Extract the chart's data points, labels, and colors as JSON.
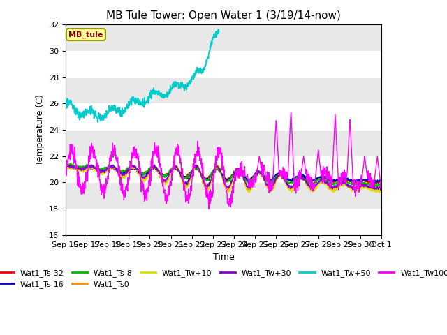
{
  "title": "MB Tule Tower: Open Water 1 (3/19/14-now)",
  "xlabel": "Time",
  "ylabel": "Temperature (C)",
  "ylim": [
    16,
    32
  ],
  "yticks": [
    16,
    18,
    20,
    22,
    24,
    26,
    28,
    30,
    32
  ],
  "xtick_labels": [
    "Sep 16",
    "Sep 17",
    "Sep 18",
    "Sep 19",
    "Sep 20",
    "Sep 21",
    "Sep 22",
    "Sep 23",
    "Sep 24",
    "Sep 25",
    "Sep 26",
    "Sep 27",
    "Sep 28",
    "Sep 29",
    "Sep 30",
    "Oct 1"
  ],
  "series": [
    {
      "label": "Wat1_Ts-32",
      "color": "#ff0000"
    },
    {
      "label": "Wat1_Ts-16",
      "color": "#0000bb"
    },
    {
      "label": "Wat1_Ts-8",
      "color": "#00bb00"
    },
    {
      "label": "Wat1_Ts0",
      "color": "#ff8800"
    },
    {
      "label": "Wat1_Tw+10",
      "color": "#dddd00"
    },
    {
      "label": "Wat1_Tw+30",
      "color": "#8800cc"
    },
    {
      "label": "Wat1_Tw+50",
      "color": "#00cccc"
    },
    {
      "label": "Wat1_Tw100",
      "color": "#ff00ff"
    }
  ]
}
